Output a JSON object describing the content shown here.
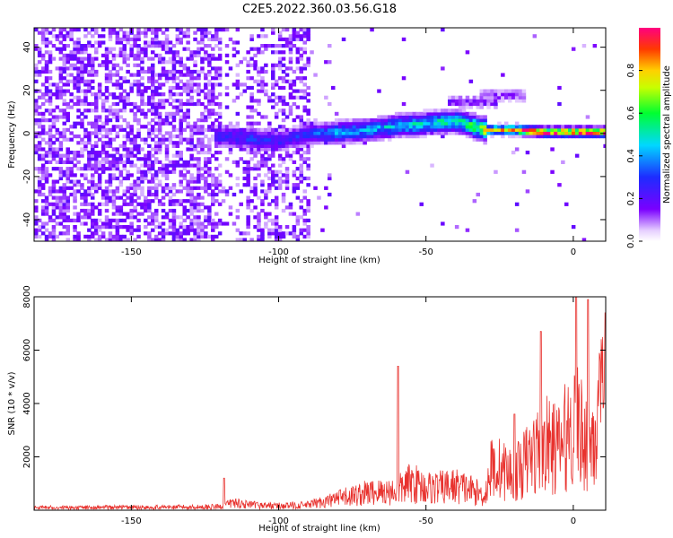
{
  "chart_data": [
    {
      "type": "heatmap",
      "title": "C2E5.2022.360.03.56.G18",
      "xlabel": "Height of straight line (km)",
      "ylabel": "Frequency (Hz)",
      "xlim": [
        -183,
        11
      ],
      "ylim": [
        -50,
        49
      ],
      "xticks": [
        -150,
        -100,
        -50,
        0
      ],
      "yticks": [
        -40,
        -20,
        0,
        20,
        40
      ],
      "colorbar": {
        "label": "Normalized spectral amplitude",
        "range": [
          0,
          1
        ],
        "ticks": [
          "0.0",
          "0.2",
          "0.4",
          "0.6",
          "0.8"
        ]
      },
      "ridge": [
        {
          "x": -120,
          "y": -2,
          "amp": 0.25
        },
        {
          "x": -110,
          "y": -3,
          "amp": 0.3
        },
        {
          "x": -100,
          "y": -4,
          "amp": 0.25
        },
        {
          "x": -90,
          "y": -1,
          "amp": 0.3
        },
        {
          "x": -80,
          "y": 0,
          "amp": 0.4
        },
        {
          "x": -70,
          "y": 1,
          "amp": 0.4
        },
        {
          "x": -60,
          "y": 3,
          "amp": 0.45
        },
        {
          "x": -50,
          "y": 4,
          "amp": 0.5
        },
        {
          "x": -40,
          "y": 5,
          "amp": 0.5
        },
        {
          "x": -30,
          "y": 1,
          "amp": 0.75
        },
        {
          "x": -20,
          "y": 1,
          "amp": 0.9
        },
        {
          "x": -10,
          "y": 0,
          "amp": 0.95
        },
        {
          "x": 0,
          "y": 0,
          "amp": 0.95
        },
        {
          "x": 10,
          "y": 0,
          "amp": 0.95
        }
      ],
      "secondary": [
        {
          "x": -35,
          "y": 14,
          "amp": 0.15
        },
        {
          "x": -25,
          "y": 17,
          "amp": 0.12
        }
      ]
    },
    {
      "type": "line",
      "xlabel": "Height of straight line (km)",
      "ylabel": "SNR (10 * v/v)",
      "xlim": [
        -183,
        11
      ],
      "ylim": [
        0,
        8000
      ],
      "xticks": [
        -150,
        -100,
        -50,
        0
      ],
      "yticks": [
        2000,
        4000,
        6000,
        8000
      ],
      "color": "#e8322e",
      "x": [
        -183,
        -170,
        -160,
        -150,
        -140,
        -130,
        -120,
        -115,
        -110,
        -100,
        -90,
        -80,
        -70,
        -60,
        -55,
        -50,
        -45,
        -40,
        -35,
        -30,
        -28,
        -25,
        -20,
        -15,
        -10,
        -5,
        0,
        5,
        8,
        11
      ],
      "y": [
        150,
        150,
        160,
        170,
        170,
        180,
        200,
        450,
        300,
        250,
        300,
        650,
        1000,
        1100,
        1600,
        1300,
        1300,
        1400,
        1200,
        800,
        2400,
        2400,
        2000,
        3000,
        3800,
        3500,
        5000,
        4000,
        4700,
        6800
      ],
      "peaks": [
        {
          "x": -118.5,
          "y": 1200
        },
        {
          "x": -59.5,
          "y": 5400
        },
        {
          "x": -20,
          "y": 3600
        },
        {
          "x": -11,
          "y": 6700
        },
        {
          "x": 1,
          "y": 8000
        },
        {
          "x": 5,
          "y": 7900
        },
        {
          "x": 11,
          "y": 7400
        }
      ]
    }
  ]
}
